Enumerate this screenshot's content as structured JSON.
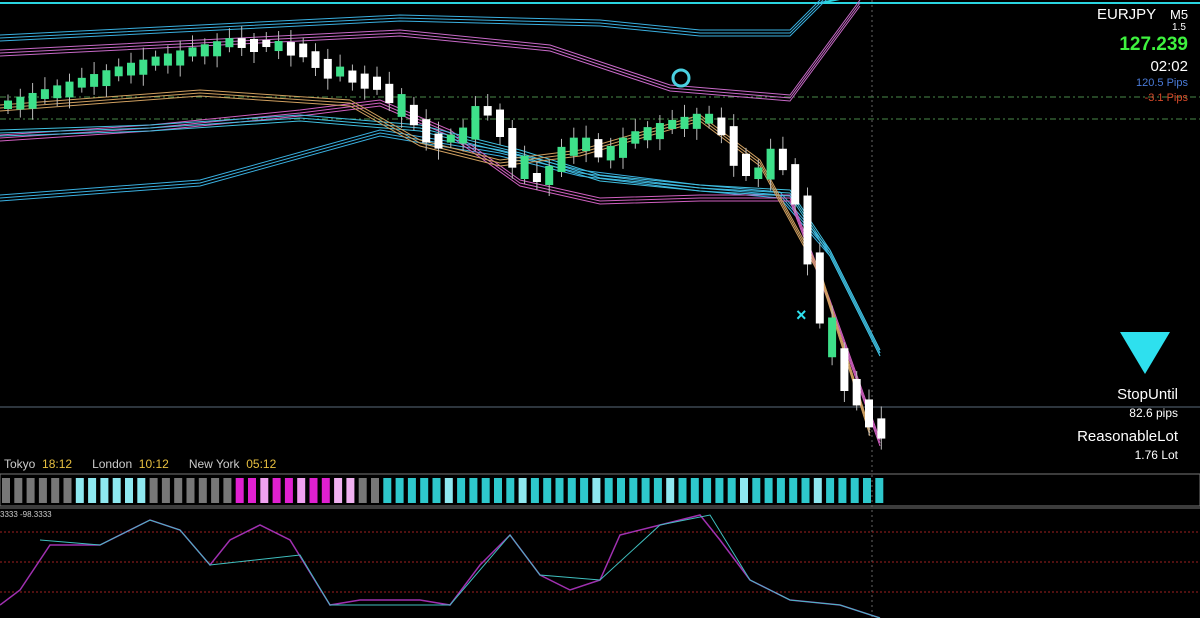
{
  "header": {
    "symbol": "EURJPY",
    "timeframe": "M5",
    "spread": "1.5",
    "price": "127.239",
    "timer": "02:02",
    "pips_up": "120.5 Pips",
    "pips_down": "-3.1 Pips"
  },
  "panel": {
    "stop_label": "StopUntil",
    "stop_value": "82.6 pips",
    "lot_label": "ReasonableLot",
    "lot_value": "1.76 Lot"
  },
  "sessions": [
    {
      "name": "Tokyo",
      "time": "18:12"
    },
    {
      "name": "London",
      "time": "10:12"
    },
    {
      "name": "New York",
      "time": "05:12"
    }
  ],
  "oscillator": {
    "label": "3333 -98.3333"
  }
}
